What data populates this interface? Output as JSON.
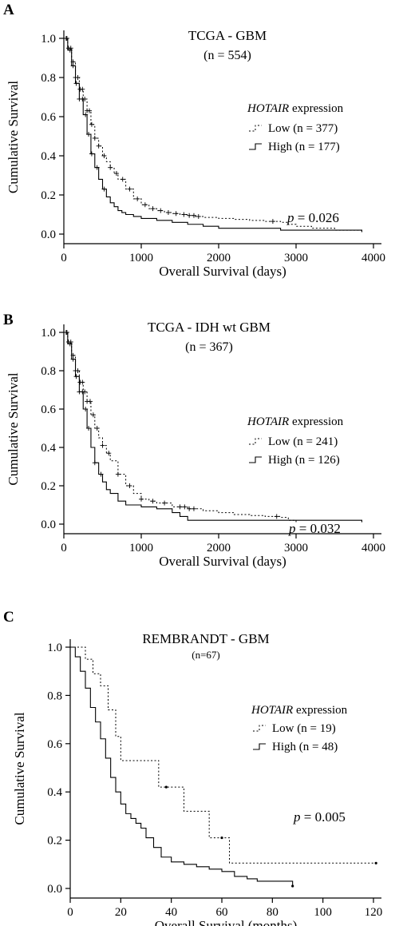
{
  "chart_data": [
    {
      "type": "line",
      "panel_label": "A",
      "title": "TCGA - GBM",
      "subtitle": "(n = 554)",
      "xlabel": "Overall Survival (days)",
      "ylabel": "Cumulative Survival",
      "xlim": [
        0,
        4000
      ],
      "ylim": [
        0,
        1.0
      ],
      "xticks": [
        "0",
        "1000",
        "2000",
        "3000",
        "4000"
      ],
      "yticks": [
        "0.0",
        "0.2",
        "0.4",
        "0.6",
        "0.8",
        "1.0"
      ],
      "legend_title_italic": "HOTAIR",
      "legend_title_rest": " expression",
      "pvalue_label": "p",
      "pvalue_rest": " = 0.026",
      "series": [
        {
          "name": "Low (n = 377)",
          "style": "dotted",
          "x": [
            0,
            50,
            100,
            150,
            200,
            250,
            300,
            350,
            400,
            450,
            500,
            550,
            600,
            650,
            700,
            800,
            900,
            1000,
            1100,
            1200,
            1300,
            1400,
            1500,
            1600,
            1700,
            1800,
            2000,
            2200,
            2400,
            2600,
            2800,
            2900,
            3000,
            3200,
            3500,
            3850
          ],
          "y": [
            1.0,
            0.95,
            0.88,
            0.8,
            0.74,
            0.69,
            0.63,
            0.56,
            0.49,
            0.45,
            0.4,
            0.37,
            0.34,
            0.31,
            0.28,
            0.23,
            0.18,
            0.15,
            0.13,
            0.12,
            0.11,
            0.105,
            0.1,
            0.095,
            0.09,
            0.085,
            0.08,
            0.075,
            0.07,
            0.065,
            0.06,
            0.05,
            0.04,
            0.03,
            0.02,
            0.01
          ],
          "censor_x": [
            30,
            60,
            90,
            120,
            150,
            180,
            210,
            240,
            270,
            300,
            330,
            360,
            400,
            450,
            520,
            600,
            680,
            760,
            850,
            950,
            1050,
            1150,
            1250,
            1350,
            1450,
            1550,
            1620,
            1680,
            1740,
            2700
          ]
        },
        {
          "name": "High (n = 177)",
          "style": "solid",
          "x": [
            0,
            50,
            100,
            150,
            200,
            250,
            300,
            350,
            400,
            450,
            500,
            550,
            600,
            650,
            700,
            750,
            800,
            900,
            1000,
            1200,
            1400,
            1600,
            1800,
            2000,
            2400,
            2800,
            3200,
            3850
          ],
          "y": [
            1.0,
            0.94,
            0.86,
            0.77,
            0.69,
            0.61,
            0.51,
            0.41,
            0.34,
            0.28,
            0.23,
            0.19,
            0.16,
            0.14,
            0.12,
            0.11,
            0.1,
            0.09,
            0.08,
            0.07,
            0.06,
            0.05,
            0.04,
            0.03,
            0.03,
            0.02,
            0.02,
            0.01
          ],
          "censor_x": [
            40,
            80,
            120,
            160,
            200,
            240,
            280,
            320,
            360,
            430,
            520
          ]
        }
      ]
    },
    {
      "type": "line",
      "panel_label": "B",
      "title": "TCGA - IDH wt GBM",
      "subtitle": "(n = 367)",
      "xlabel": "Overall Survival (days)",
      "ylabel": "Cumulative Survival",
      "xlim": [
        0,
        4000
      ],
      "ylim": [
        0,
        1.0
      ],
      "xticks": [
        "0",
        "1000",
        "2000",
        "3000",
        "4000"
      ],
      "yticks": [
        "0.0",
        "0.2",
        "0.4",
        "0.6",
        "0.8",
        "1.0"
      ],
      "legend_title_italic": "HOTAIR",
      "legend_title_rest": " expression",
      "pvalue_label": "p",
      "pvalue_rest": " = 0.032",
      "series": [
        {
          "name": "Low (n = 241)",
          "style": "dotted",
          "x": [
            0,
            50,
            100,
            150,
            200,
            250,
            300,
            350,
            400,
            450,
            500,
            550,
            600,
            700,
            800,
            900,
            1000,
            1100,
            1200,
            1400,
            1600,
            1800,
            2000,
            2200,
            2400,
            2600,
            2800,
            2900,
            3000
          ],
          "y": [
            1.0,
            0.95,
            0.88,
            0.8,
            0.74,
            0.69,
            0.64,
            0.57,
            0.5,
            0.45,
            0.41,
            0.37,
            0.33,
            0.26,
            0.2,
            0.16,
            0.13,
            0.12,
            0.11,
            0.09,
            0.08,
            0.07,
            0.06,
            0.05,
            0.045,
            0.04,
            0.035,
            0.02,
            0.01
          ],
          "censor_x": [
            30,
            60,
            90,
            120,
            150,
            180,
            210,
            240,
            270,
            300,
            340,
            380,
            430,
            500,
            580,
            700,
            850,
            1000,
            1150,
            1300,
            1500,
            1560,
            1620,
            1680,
            2750
          ]
        },
        {
          "name": "High (n = 126)",
          "style": "solid",
          "x": [
            0,
            50,
            100,
            150,
            200,
            250,
            300,
            350,
            400,
            450,
            500,
            550,
            600,
            700,
            800,
            1000,
            1200,
            1400,
            1500,
            1600,
            2000,
            2800,
            3850
          ],
          "y": [
            1.0,
            0.94,
            0.86,
            0.77,
            0.69,
            0.6,
            0.5,
            0.4,
            0.32,
            0.26,
            0.22,
            0.18,
            0.16,
            0.12,
            0.1,
            0.09,
            0.08,
            0.06,
            0.04,
            0.02,
            0.02,
            0.02,
            0.01
          ],
          "censor_x": [
            40,
            80,
            120,
            160,
            200,
            240,
            280,
            320,
            400,
            480
          ]
        }
      ]
    },
    {
      "type": "line",
      "panel_label": "C",
      "title": "REMBRANDT - GBM",
      "subtitle": "(n=67)",
      "xlabel": "Overall Survival (months)",
      "ylabel": "Cumulative Survival",
      "xlim": [
        0,
        120
      ],
      "ylim": [
        0,
        1.0
      ],
      "xticks": [
        "0",
        "20",
        "40",
        "60",
        "80",
        "100",
        "120"
      ],
      "yticks": [
        "0.0",
        "0.2",
        "0.4",
        "0.6",
        "0.8",
        "1.0"
      ],
      "legend_title_italic": "HOTAIR",
      "legend_title_rest": " expression",
      "pvalue_label": "p",
      "pvalue_rest": " = 0.005",
      "series": [
        {
          "name": "Low (n = 19)",
          "style": "dotted",
          "x": [
            0,
            3,
            6,
            9,
            12,
            15,
            18,
            20,
            25,
            30,
            35,
            38,
            45,
            50,
            55,
            60,
            63,
            121
          ],
          "y": [
            1.0,
            1.0,
            0.95,
            0.89,
            0.84,
            0.74,
            0.63,
            0.53,
            0.53,
            0.53,
            0.42,
            0.42,
            0.32,
            0.32,
            0.21,
            0.21,
            0.105,
            0.105
          ],
          "censor_x": [
            38,
            60,
            121
          ]
        },
        {
          "name": "High (n = 48)",
          "style": "solid",
          "x": [
            0,
            2,
            4,
            6,
            8,
            10,
            12,
            14,
            16,
            18,
            20,
            22,
            24,
            26,
            28,
            30,
            33,
            36,
            40,
            45,
            50,
            55,
            60,
            65,
            70,
            74,
            88
          ],
          "y": [
            1.0,
            0.96,
            0.9,
            0.83,
            0.75,
            0.69,
            0.62,
            0.54,
            0.46,
            0.4,
            0.35,
            0.31,
            0.29,
            0.27,
            0.25,
            0.21,
            0.17,
            0.13,
            0.11,
            0.1,
            0.09,
            0.08,
            0.07,
            0.05,
            0.04,
            0.03,
            0.01
          ],
          "censor_x": [
            88
          ]
        }
      ]
    }
  ]
}
